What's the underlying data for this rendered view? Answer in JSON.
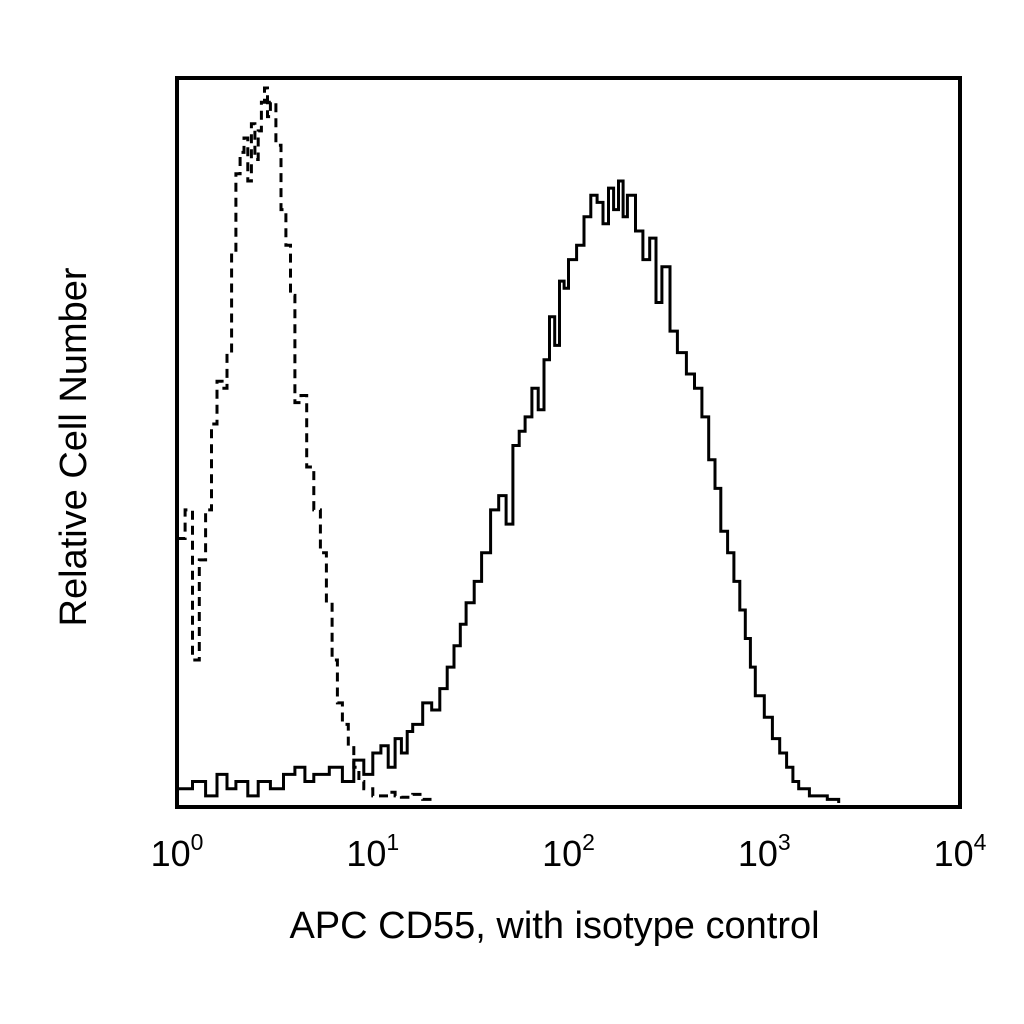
{
  "chart_data": {
    "type": "line",
    "title": "",
    "xlabel": "APC CD55, with isotype control",
    "ylabel": "Relative Cell Number",
    "x_scale": "log",
    "xlim": [
      1,
      10000
    ],
    "ylim": [
      0,
      100
    ],
    "grid": false,
    "legend": "none",
    "x_ticks": [
      {
        "value": 1,
        "base": "10",
        "exp": "0"
      },
      {
        "value": 10,
        "base": "10",
        "exp": "1"
      },
      {
        "value": 100,
        "base": "10",
        "exp": "2"
      },
      {
        "value": 1000,
        "base": "10",
        "exp": "3"
      },
      {
        "value": 10000,
        "base": "10",
        "exp": "4"
      }
    ],
    "series": [
      {
        "style": "dashed",
        "color": "#000000",
        "x": [
          1.0,
          1.1,
          1.2,
          1.3,
          1.4,
          1.5,
          1.6,
          1.7,
          1.8,
          1.9,
          2.0,
          2.1,
          2.2,
          2.3,
          2.4,
          2.5,
          2.6,
          2.7,
          2.8,
          2.9,
          3.0,
          3.2,
          3.4,
          3.6,
          3.8,
          4.0,
          4.3,
          4.6,
          5.0,
          5.4,
          5.8,
          6.2,
          6.6,
          7.0,
          7.5,
          8.0,
          8.5,
          9.0,
          10,
          11,
          12,
          13,
          14,
          16,
          18,
          20
        ],
        "y": [
          37,
          41,
          20,
          34,
          41,
          53,
          59,
          58,
          63,
          77,
          88,
          91,
          93,
          87,
          95,
          90,
          94,
          98,
          100,
          96,
          98,
          92,
          83,
          78,
          71,
          56,
          57,
          47,
          41,
          35,
          28,
          20,
          14,
          11,
          8,
          5,
          3,
          2,
          1,
          1,
          1.5,
          1,
          0.8,
          1.2,
          0.5,
          0
        ],
        "name": ""
      },
      {
        "style": "solid",
        "color": "#000000",
        "x": [
          1.0,
          1.2,
          1.4,
          1.6,
          1.8,
          2.0,
          2.3,
          2.6,
          3.0,
          3.5,
          4.0,
          4.5,
          5.0,
          6.0,
          7.0,
          8.0,
          9.0,
          10,
          11,
          12,
          13,
          14,
          15,
          16,
          18,
          20,
          22,
          24,
          26,
          28,
          30,
          33,
          36,
          40,
          44,
          48,
          52,
          56,
          60,
          65,
          70,
          75,
          80,
          85,
          90,
          95,
          100,
          110,
          120,
          130,
          140,
          150,
          160,
          170,
          180,
          190,
          200,
          220,
          240,
          260,
          280,
          300,
          330,
          360,
          400,
          440,
          480,
          520,
          560,
          600,
          650,
          700,
          750,
          800,
          850,
          900,
          1000,
          1100,
          1200,
          1300,
          1400,
          1500,
          1700,
          1900,
          2100,
          2400
        ],
        "y": [
          2,
          3,
          1,
          4,
          2,
          3,
          1,
          3,
          2,
          4,
          5,
          3,
          4,
          5,
          3,
          6,
          4,
          7,
          8,
          5,
          9,
          7,
          10,
          11,
          14,
          13,
          16,
          19,
          22,
          25,
          28,
          31,
          35,
          41,
          43,
          39,
          50,
          52,
          54,
          58,
          55,
          62,
          68,
          64,
          73,
          72,
          76,
          78,
          82,
          85,
          84,
          81,
          86,
          83,
          87,
          82,
          85,
          80,
          76,
          79,
          70,
          75,
          66,
          63,
          60,
          58,
          54,
          48,
          44,
          38,
          35,
          31,
          27,
          23,
          19,
          15,
          12,
          9,
          7,
          5,
          3,
          2,
          1,
          1,
          0.5,
          0
        ],
        "name": ""
      }
    ]
  }
}
